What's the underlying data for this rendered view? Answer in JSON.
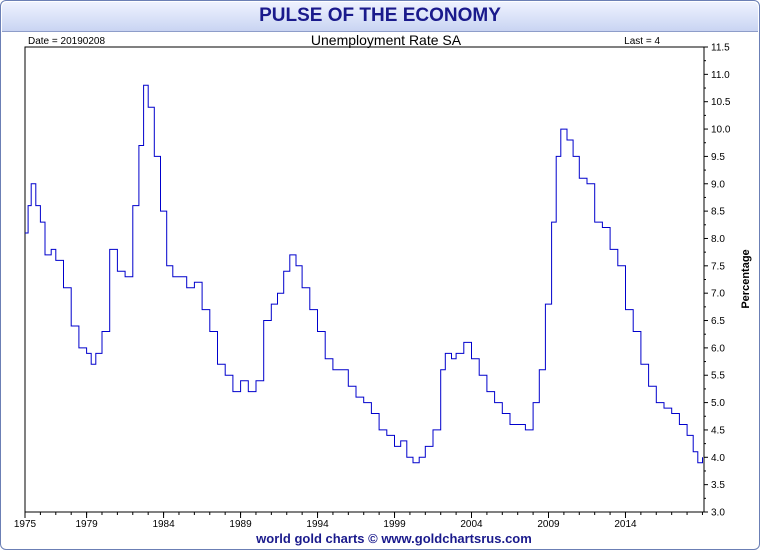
{
  "header": {
    "title": "PULSE OF THE ECONOMY"
  },
  "footer": {
    "credit": "world gold charts © www.goldchartsrus.com"
  },
  "chart_data": {
    "type": "line",
    "title": "Unemployment Rate SA",
    "date_label": "Date = 20190208",
    "last_label": "Last = 4",
    "ylabel": "Percentage",
    "xlabel": "",
    "ylim": [
      3.0,
      11.5
    ],
    "xlim": [
      1975.0,
      2019.1
    ],
    "y_ticks": [
      3.0,
      3.5,
      4.0,
      4.5,
      5.0,
      5.5,
      6.0,
      6.5,
      7.0,
      7.5,
      8.0,
      8.5,
      9.0,
      9.5,
      10.0,
      10.5,
      11.0,
      11.5
    ],
    "y_tick_labels": [
      "3.0",
      "3.5",
      "4.0",
      "4.5",
      "5.0",
      "5.5",
      "6.0",
      "6.5",
      "7.0",
      "7.5",
      "8.0",
      "8.5",
      "9.0",
      "9.5",
      "10.0",
      "10.5",
      "11.0",
      "11.5"
    ],
    "x_ticks": [
      1975,
      1979,
      1984,
      1989,
      1994,
      1999,
      2004,
      2009,
      2014
    ],
    "x_tick_labels": [
      "1975",
      "1979",
      "1984",
      "1989",
      "1994",
      "1999",
      "2004",
      "2009",
      "2014"
    ],
    "grid": false,
    "line_color": "#0000cc",
    "series": [
      {
        "x": [
          1975.0,
          1975.2,
          1975.4,
          1975.7,
          1976.0,
          1976.3,
          1976.7,
          1977.0,
          1977.5,
          1978.0,
          1978.5,
          1979.0,
          1979.3,
          1979.6,
          1980.0,
          1980.5,
          1981.0,
          1981.5,
          1982.0,
          1982.4,
          1982.7,
          1983.0,
          1983.4,
          1983.8,
          1984.2,
          1984.6,
          1985.0,
          1985.5,
          1986.0,
          1986.5,
          1987.0,
          1987.5,
          1988.0,
          1988.5,
          1989.0,
          1989.5,
          1990.0,
          1990.5,
          1991.0,
          1991.4,
          1991.8,
          1992.2,
          1992.6,
          1993.0,
          1993.5,
          1994.0,
          1994.5,
          1995.0,
          1995.5,
          1996.0,
          1996.5,
          1997.0,
          1997.5,
          1998.0,
          1998.5,
          1999.0,
          1999.4,
          1999.8,
          2000.2,
          2000.6,
          2001.0,
          2001.5,
          2002.0,
          2002.3,
          2002.7,
          2003.0,
          2003.5,
          2004.0,
          2004.5,
          2005.0,
          2005.5,
          2006.0,
          2006.5,
          2007.0,
          2007.5,
          2008.0,
          2008.4,
          2008.8,
          2009.2,
          2009.5,
          2009.8,
          2010.2,
          2010.6,
          2011.0,
          2011.5,
          2012.0,
          2012.5,
          2013.0,
          2013.5,
          2014.0,
          2014.5,
          2015.0,
          2015.5,
          2016.0,
          2016.5,
          2017.0,
          2017.5,
          2018.0,
          2018.4,
          2018.7,
          2019.0
        ],
        "values": [
          8.1,
          8.6,
          9.0,
          8.6,
          8.3,
          7.7,
          7.8,
          7.6,
          7.1,
          6.4,
          6.0,
          5.9,
          5.7,
          5.9,
          6.3,
          7.8,
          7.4,
          7.3,
          8.6,
          9.7,
          10.8,
          10.4,
          9.5,
          8.5,
          7.5,
          7.3,
          7.3,
          7.1,
          7.2,
          6.7,
          6.3,
          5.7,
          5.5,
          5.2,
          5.4,
          5.2,
          5.4,
          6.5,
          6.8,
          7.0,
          7.4,
          7.7,
          7.5,
          7.1,
          6.7,
          6.3,
          5.8,
          5.6,
          5.6,
          5.3,
          5.1,
          5.0,
          4.8,
          4.5,
          4.4,
          4.2,
          4.3,
          4.0,
          3.9,
          4.0,
          4.2,
          4.5,
          5.6,
          5.9,
          5.8,
          5.9,
          6.1,
          5.8,
          5.5,
          5.2,
          5.0,
          4.8,
          4.6,
          4.6,
          4.5,
          5.0,
          5.6,
          6.8,
          8.3,
          9.5,
          10.0,
          9.8,
          9.5,
          9.1,
          9.0,
          8.3,
          8.2,
          7.8,
          7.5,
          6.7,
          6.3,
          5.7,
          5.3,
          5.0,
          4.9,
          4.8,
          4.6,
          4.4,
          4.1,
          3.9,
          4.0
        ]
      }
    ]
  }
}
